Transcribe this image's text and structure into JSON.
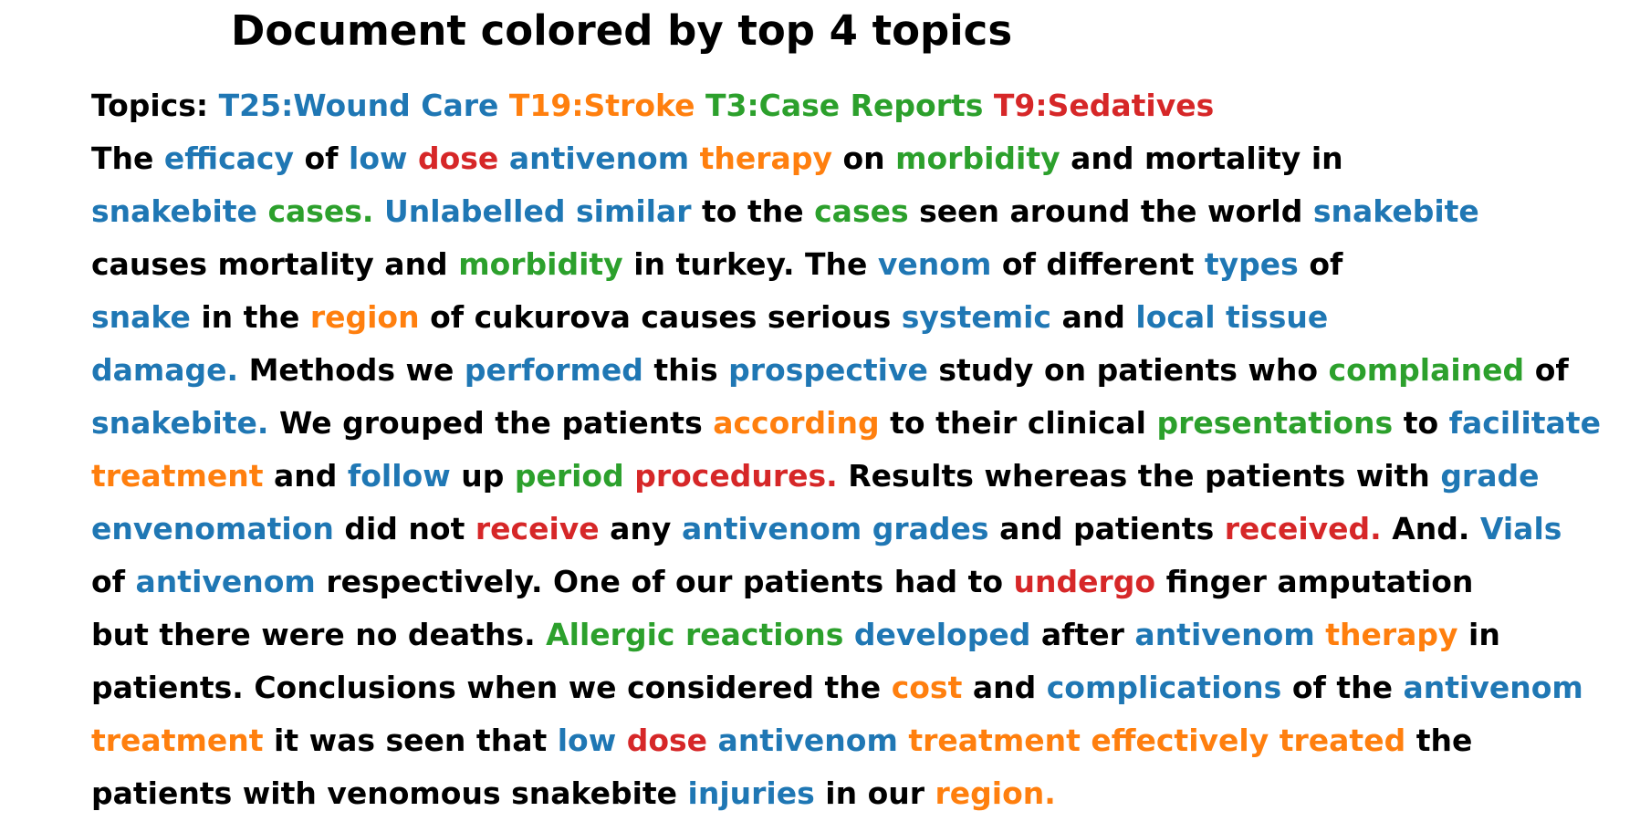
{
  "title": "Document colored by top 4 topics",
  "topics_label": "Topics:",
  "topics": [
    {
      "id": "T25",
      "label": "T25:Wound Care",
      "color": "#1f77b4"
    },
    {
      "id": "T19",
      "label": "T19:Stroke",
      "color": "#ff7f0e"
    },
    {
      "id": "T3",
      "label": "T3:Case Reports",
      "color": "#2ca02c"
    },
    {
      "id": "T9",
      "label": "T9:Sedatives",
      "color": "#d62728"
    }
  ],
  "lines": [
    [
      [
        "The",
        null
      ],
      [
        "efficacy",
        "T25"
      ],
      [
        "of",
        null
      ],
      [
        "low",
        "T25"
      ],
      [
        "dose",
        "T9"
      ],
      [
        "antivenom",
        "T25"
      ],
      [
        "therapy",
        "T19"
      ],
      [
        "on",
        null
      ],
      [
        "morbidity",
        "T3"
      ],
      [
        "and",
        null
      ],
      [
        "mortality",
        null
      ],
      [
        "in",
        null
      ]
    ],
    [
      [
        "snakebite",
        "T25"
      ],
      [
        "cases.",
        "T3"
      ],
      [
        "Unlabelled",
        "T25"
      ],
      [
        "similar",
        "T25"
      ],
      [
        "to",
        null
      ],
      [
        "the",
        null
      ],
      [
        "cases",
        "T3"
      ],
      [
        "seen",
        null
      ],
      [
        "around",
        null
      ],
      [
        "the",
        null
      ],
      [
        "world",
        null
      ],
      [
        "snakebite",
        "T25"
      ]
    ],
    [
      [
        "causes",
        null
      ],
      [
        "mortality",
        null
      ],
      [
        "and",
        null
      ],
      [
        "morbidity",
        "T3"
      ],
      [
        "in",
        null
      ],
      [
        "turkey.",
        null
      ],
      [
        "The",
        null
      ],
      [
        "venom",
        "T25"
      ],
      [
        "of",
        null
      ],
      [
        "different",
        null
      ],
      [
        "types",
        "T25"
      ],
      [
        "of",
        null
      ]
    ],
    [
      [
        "snake",
        "T25"
      ],
      [
        "in",
        null
      ],
      [
        "the",
        null
      ],
      [
        "region",
        "T19"
      ],
      [
        "of",
        null
      ],
      [
        "cukurova",
        null
      ],
      [
        "causes",
        null
      ],
      [
        "serious",
        null
      ],
      [
        "systemic",
        "T25"
      ],
      [
        "and",
        null
      ],
      [
        "local",
        "T25"
      ],
      [
        "tissue",
        "T25"
      ]
    ],
    [
      [
        "damage.",
        "T25"
      ],
      [
        "Methods",
        null
      ],
      [
        "we",
        null
      ],
      [
        "performed",
        "T25"
      ],
      [
        "this",
        null
      ],
      [
        "prospective",
        "T25"
      ],
      [
        "study",
        null
      ],
      [
        "on",
        null
      ],
      [
        "patients",
        null
      ],
      [
        "who",
        null
      ],
      [
        "complained",
        "T3"
      ],
      [
        "of",
        null
      ]
    ],
    [
      [
        "snakebite.",
        "T25"
      ],
      [
        "We",
        null
      ],
      [
        "grouped",
        null
      ],
      [
        "the",
        null
      ],
      [
        "patients",
        null
      ],
      [
        "according",
        "T19"
      ],
      [
        "to",
        null
      ],
      [
        "their",
        null
      ],
      [
        "clinical",
        null
      ],
      [
        "presentations",
        "T3"
      ],
      [
        "to",
        null
      ],
      [
        "facilitate",
        "T25"
      ]
    ],
    [
      [
        "treatment",
        "T19"
      ],
      [
        "and",
        null
      ],
      [
        "follow",
        "T25"
      ],
      [
        "up",
        null
      ],
      [
        "period",
        "T3"
      ],
      [
        "procedures.",
        "T9"
      ],
      [
        "Results",
        null
      ],
      [
        "whereas",
        null
      ],
      [
        "the",
        null
      ],
      [
        "patients",
        null
      ],
      [
        "with",
        null
      ],
      [
        "grade",
        "T25"
      ]
    ],
    [
      [
        "envenomation",
        "T25"
      ],
      [
        "did",
        null
      ],
      [
        "not",
        null
      ],
      [
        "receive",
        "T9"
      ],
      [
        "any",
        null
      ],
      [
        "antivenom",
        "T25"
      ],
      [
        "grades",
        "T25"
      ],
      [
        "and",
        null
      ],
      [
        "patients",
        null
      ],
      [
        "received.",
        "T9"
      ],
      [
        "And.",
        null
      ],
      [
        "Vials",
        "T25"
      ]
    ],
    [
      [
        "of",
        null
      ],
      [
        "antivenom",
        "T25"
      ],
      [
        "respectively.",
        null
      ],
      [
        "One",
        null
      ],
      [
        "of",
        null
      ],
      [
        "our",
        null
      ],
      [
        "patients",
        null
      ],
      [
        "had",
        null
      ],
      [
        "to",
        null
      ],
      [
        "undergo",
        "T9"
      ],
      [
        "finger",
        null
      ],
      [
        "amputation",
        null
      ]
    ],
    [
      [
        "but",
        null
      ],
      [
        "there",
        null
      ],
      [
        "were",
        null
      ],
      [
        "no",
        null
      ],
      [
        "deaths.",
        null
      ],
      [
        "Allergic",
        "T3"
      ],
      [
        "reactions",
        "T3"
      ],
      [
        "developed",
        "T25"
      ],
      [
        "after",
        null
      ],
      [
        "antivenom",
        "T25"
      ],
      [
        "therapy",
        "T19"
      ],
      [
        "in",
        null
      ]
    ],
    [
      [
        "patients.",
        null
      ],
      [
        "Conclusions",
        null
      ],
      [
        "when",
        null
      ],
      [
        "we",
        null
      ],
      [
        "considered",
        null
      ],
      [
        "the",
        null
      ],
      [
        "cost",
        "T19"
      ],
      [
        "and",
        null
      ],
      [
        "complications",
        "T25"
      ],
      [
        "of",
        null
      ],
      [
        "the",
        null
      ],
      [
        "antivenom",
        "T25"
      ]
    ],
    [
      [
        "treatment",
        "T19"
      ],
      [
        "it",
        null
      ],
      [
        "was",
        null
      ],
      [
        "seen",
        null
      ],
      [
        "that",
        null
      ],
      [
        "low",
        "T25"
      ],
      [
        "dose",
        "T9"
      ],
      [
        "antivenom",
        "T25"
      ],
      [
        "treatment",
        "T19"
      ],
      [
        "effectively",
        "T19"
      ],
      [
        "treated",
        "T19"
      ],
      [
        "the",
        null
      ]
    ],
    [
      [
        "patients",
        null
      ],
      [
        "with",
        null
      ],
      [
        "venomous",
        null
      ],
      [
        "snakebite",
        null
      ],
      [
        "injuries",
        "T25"
      ],
      [
        "in",
        null
      ],
      [
        "our",
        null
      ],
      [
        "region.",
        "T19"
      ]
    ]
  ]
}
